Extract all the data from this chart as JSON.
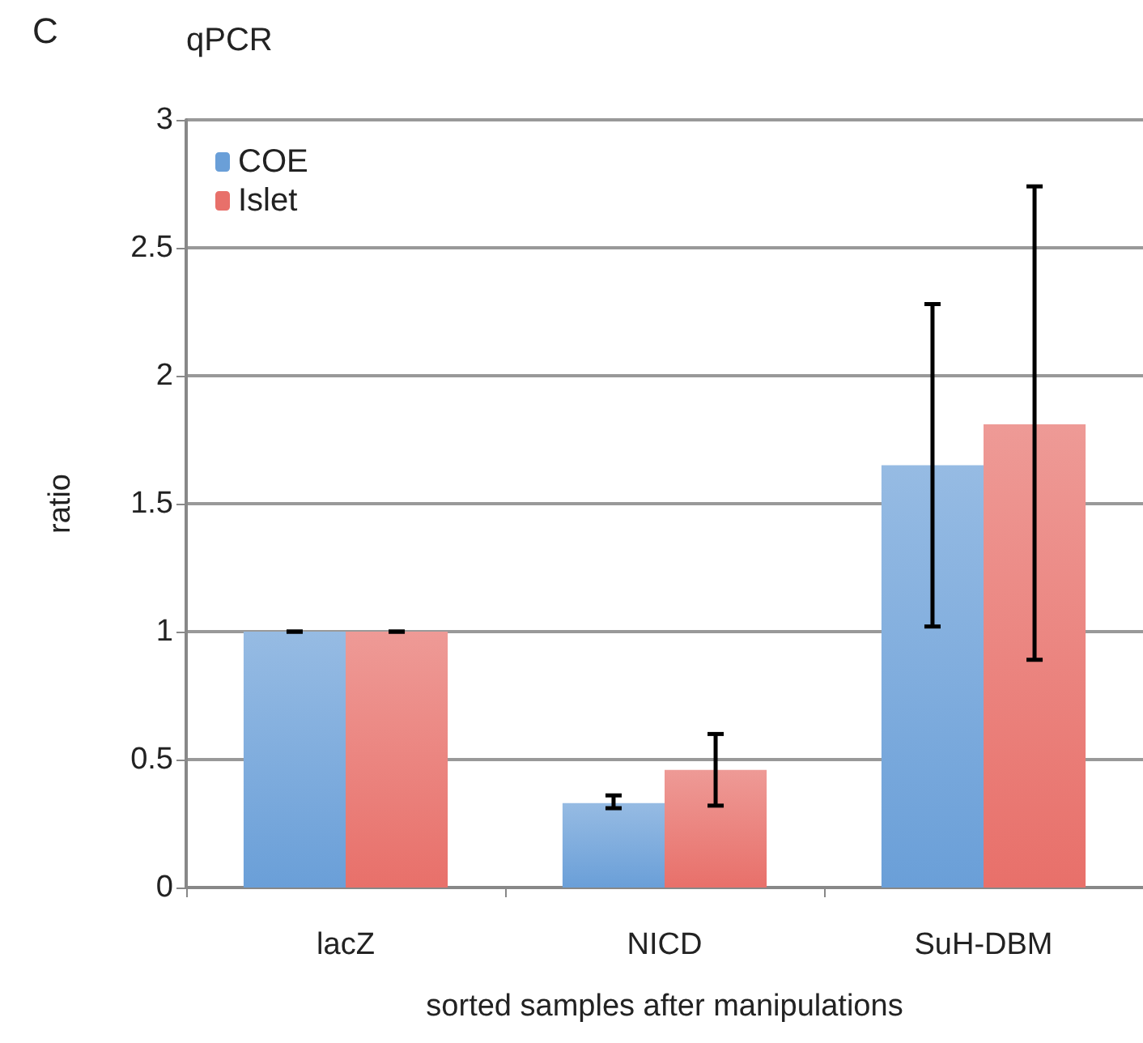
{
  "chart_data": {
    "type": "bar",
    "title": "qPCR",
    "annotations": [
      "C"
    ],
    "xlabel": "sorted samples after manipulations",
    "ylabel": "ratio",
    "categories": [
      "lacZ",
      "NICD",
      "SuH-DBM"
    ],
    "series": [
      {
        "name": "COE",
        "color": "#6a9fd8",
        "values": [
          1,
          0.33,
          1.65
        ],
        "errors": [
          [
            1,
            1
          ],
          [
            0.31,
            0.36
          ],
          [
            1.02,
            2.28
          ]
        ]
      },
      {
        "name": "Islet",
        "color": "#e8706a",
        "values": [
          1,
          0.46,
          1.81
        ],
        "errors": [
          [
            1,
            1
          ],
          [
            0.32,
            0.6
          ],
          [
            0.89,
            2.74
          ]
        ]
      }
    ],
    "ylim": [
      0,
      3
    ],
    "yticks": [
      0,
      0.5,
      1,
      1.5,
      2,
      2.5,
      3
    ],
    "grid": "y",
    "legend": "top left"
  }
}
